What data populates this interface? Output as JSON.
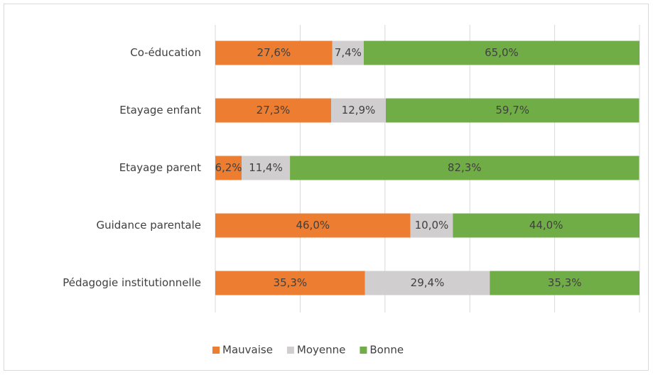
{
  "chart_data": {
    "type": "stacked-bar-horizontal",
    "categories": [
      "Co-éducation",
      "Etayage enfant",
      "Etayage parent",
      "Guidance parentale",
      "Pédagogie institutionnelle"
    ],
    "series": [
      {
        "name": "Mauvaise",
        "color": "#ed7d31",
        "values": [
          27.6,
          27.3,
          6.2,
          46.0,
          35.3
        ],
        "value_labels": [
          "27,6%",
          "27,3%",
          "6,2%",
          "46,0%",
          "35,3%"
        ]
      },
      {
        "name": "Moyenne",
        "color": "#d0cece",
        "values": [
          7.4,
          12.9,
          11.4,
          10.0,
          29.4
        ],
        "value_labels": [
          "7,4%",
          "12,9%",
          "11,4%",
          "10,0%",
          "29,4%"
        ]
      },
      {
        "name": "Bonne",
        "color": "#70ad47",
        "values": [
          65.0,
          59.7,
          82.3,
          44.0,
          35.3
        ],
        "value_labels": [
          "65,0%",
          "59,7%",
          "82,3%",
          "44,0%",
          "35,3%"
        ]
      }
    ],
    "xlim": [
      0,
      100
    ],
    "xticks": [
      0,
      20,
      40,
      60,
      80,
      100
    ],
    "grid": true,
    "legend": "bottom"
  }
}
